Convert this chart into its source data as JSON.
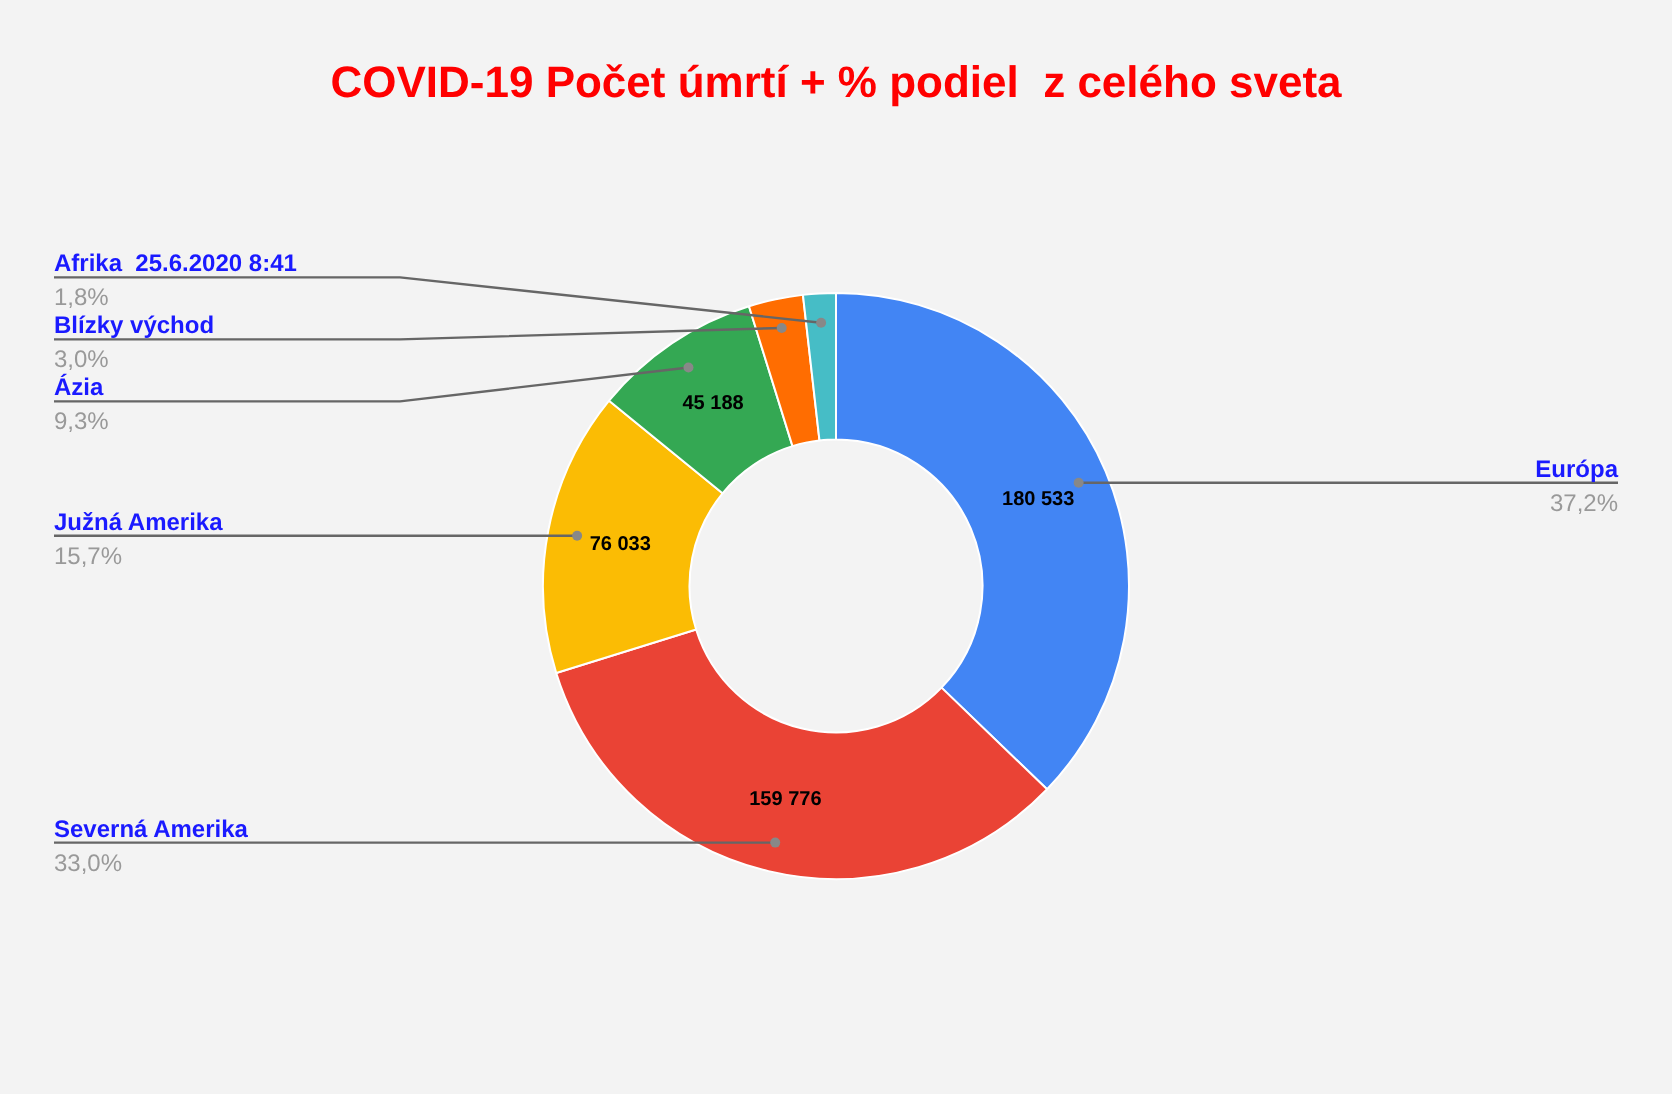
{
  "chart_data": {
    "type": "donut",
    "title": "COVID-19 Počet úmrtí + % podiel  z celého sveta",
    "categories": [
      "Európa",
      "Severná Amerika",
      "Južná Amerika",
      "Ázia",
      "Blízky východ",
      "Afrika  25.6.2020 8:41"
    ],
    "values": [
      37.2,
      33.0,
      15.7,
      9.3,
      3.0,
      1.8
    ],
    "colors": [
      "#4285f4",
      "#ea4335",
      "#fbbc04",
      "#34a853",
      "#ff6d01",
      "#46bdc6"
    ],
    "value_labels": [
      "37,2%",
      "33,0%",
      "15,7%",
      "9,3%",
      "3,0%",
      "1,8%"
    ],
    "annotations": [
      {
        "text": "180 533",
        "x": "Európa"
      },
      {
        "text": "159 776",
        "x": "Severná Amerika"
      },
      {
        "text": "76 033",
        "x": "Južná Amerika"
      },
      {
        "text": "45 188",
        "x": "Ázia"
      }
    ]
  }
}
